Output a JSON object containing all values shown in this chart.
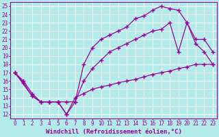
{
  "background_color": "#b3eaea",
  "line_color": "#990099",
  "grid_color": "#ffffff",
  "xlabel": "Windchill (Refroidissement éolien,°C)",
  "xlabel_fontsize": 6.5,
  "ylabel_ticks": [
    12,
    13,
    14,
    15,
    16,
    17,
    18,
    19,
    20,
    21,
    22,
    23,
    24,
    25
  ],
  "xlabel_ticks": [
    0,
    1,
    2,
    3,
    4,
    5,
    6,
    7,
    8,
    9,
    10,
    11,
    12,
    13,
    14,
    15,
    16,
    17,
    18,
    19,
    20,
    21,
    22,
    23
  ],
  "xlim": [
    -0.5,
    23.5
  ],
  "ylim": [
    11.5,
    25.5
  ],
  "line1_x": [
    0,
    1,
    2,
    3,
    4,
    5,
    6,
    7,
    8,
    9,
    10,
    11,
    12,
    13,
    14,
    15,
    16,
    17,
    18,
    19,
    20,
    21,
    22,
    23
  ],
  "line1_y": [
    17,
    16,
    14.5,
    13.5,
    13.5,
    13.5,
    12,
    14,
    14.5,
    15,
    15.3,
    15.5,
    15.8,
    16,
    16.2,
    16.5,
    16.8,
    17,
    17.2,
    17.5,
    17.7,
    18,
    18,
    18
  ],
  "line2_x": [
    0,
    2,
    3,
    4,
    5,
    6,
    7,
    8,
    9,
    10,
    11,
    12,
    13,
    14,
    15,
    16,
    17,
    18,
    19,
    20,
    21,
    22,
    23
  ],
  "line2_y": [
    17,
    14.2,
    13.5,
    13.5,
    13.5,
    13.5,
    13.5,
    16,
    17.5,
    18.5,
    19.5,
    20,
    20.5,
    21,
    21.5,
    22,
    22.2,
    23,
    19.5,
    23,
    21,
    21,
    19.5
  ],
  "line3_x": [
    0,
    1,
    2,
    3,
    4,
    5,
    6,
    7,
    8,
    9,
    10,
    11,
    12,
    13,
    14,
    15,
    16,
    17,
    18,
    19,
    20,
    21,
    22,
    23
  ],
  "line3_y": [
    17,
    15.8,
    14.2,
    13.5,
    13.5,
    13.5,
    12.0,
    13.5,
    18,
    20,
    21,
    21.5,
    22,
    22.5,
    23.5,
    23.8,
    24.5,
    25.0,
    24.7,
    24.5,
    23,
    20.5,
    19.5,
    18
  ],
  "marker": "+",
  "markersize": 4,
  "linewidth": 0.9,
  "tick_fontsize": 5.5,
  "ylabel_fontsize": 5.5
}
